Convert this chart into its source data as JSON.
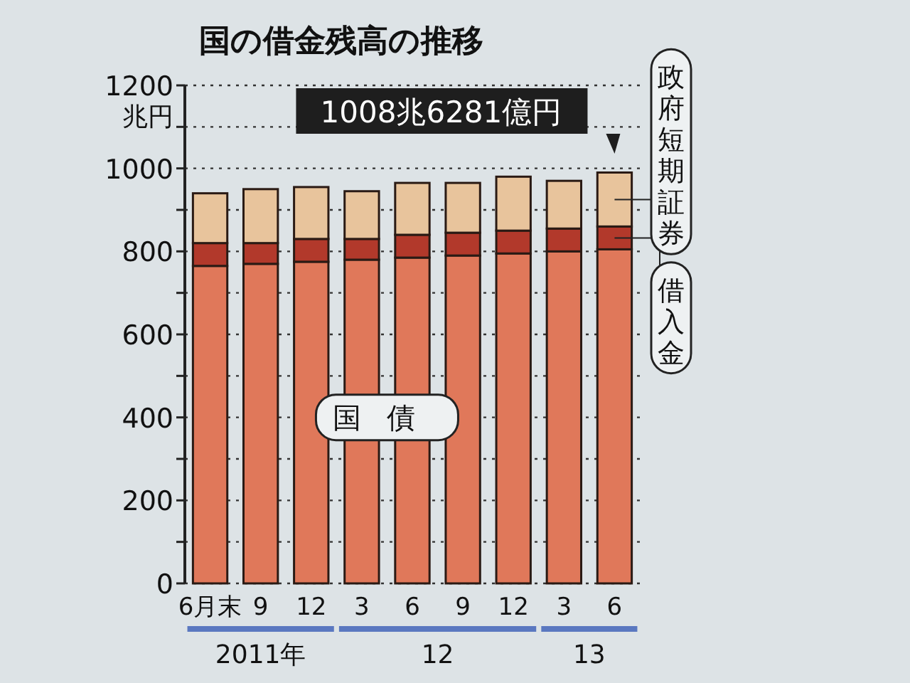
{
  "chart_data": {
    "type": "bar",
    "title": "国の借金残高の推移",
    "ylabel": "兆円",
    "stacked": true,
    "grid": "y",
    "categories": [
      "6月末",
      "9",
      "12",
      "3",
      "6",
      "9",
      "12",
      "3",
      "6"
    ],
    "series": [
      {
        "name": "国債",
        "color": "#e0785a",
        "values": [
          765,
          770,
          775,
          780,
          785,
          790,
          795,
          800,
          805
        ]
      },
      {
        "name": "借入金",
        "color": "#b2392b",
        "values": [
          55,
          50,
          55,
          50,
          55,
          55,
          55,
          55,
          55
        ]
      },
      {
        "name": "政府短期証券",
        "color": "#e8c49c",
        "values": [
          120,
          130,
          125,
          115,
          125,
          120,
          130,
          115,
          130
        ]
      }
    ],
    "ylim": [
      0,
      1200
    ],
    "yticks": [
      0,
      {
        "value": 100,
        "label": null
      },
      200,
      {
        "value": 300,
        "label": null
      },
      400,
      {
        "value": 500,
        "label": null
      },
      600,
      {
        "value": 700,
        "label": null
      },
      800,
      {
        "value": 900,
        "label": null
      },
      1000,
      {
        "value": 1100,
        "label": null
      },
      1200
    ],
    "annotations": [
      "1008兆6281億円",
      "2011年",
      "12",
      "13"
    ]
  }
}
